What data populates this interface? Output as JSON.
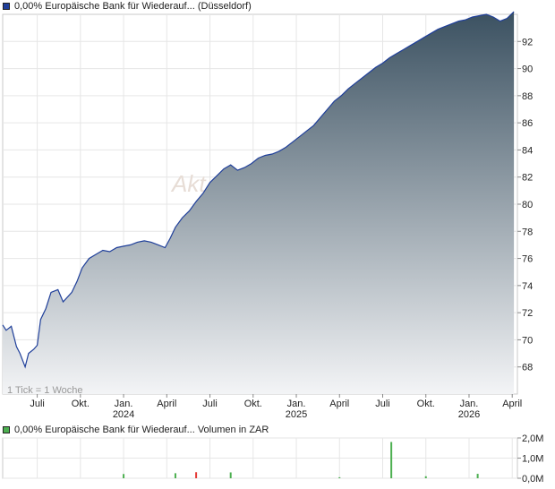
{
  "price_chart": {
    "legend": "0,00% Europäische Bank für Wiederauf... (Düsseldorf)",
    "watermark": "Akt",
    "tick_note": "1 Tick = 1 Woche",
    "color_line": "#1f3f9a",
    "color_fill_top": "#3b5161",
    "color_fill_bottom": "#f3f4f6"
  },
  "volume_chart": {
    "legend": "0,00% Europäische Bank für Wiederauf... Volumen in ZAR"
  },
  "chart_data": [
    {
      "type": "area",
      "title": "0,00% Europäische Bank für Wiederauf... (Düsseldorf)",
      "x_tick_labels": [
        {
          "month": "Juli",
          "year": ""
        },
        {
          "month": "Okt.",
          "year": ""
        },
        {
          "month": "Jan.",
          "year": "2024"
        },
        {
          "month": "April",
          "year": ""
        },
        {
          "month": "Juli",
          "year": ""
        },
        {
          "month": "Okt.",
          "year": ""
        },
        {
          "month": "Jan.",
          "year": "2025"
        },
        {
          "month": "April",
          "year": ""
        },
        {
          "month": "Juli",
          "year": ""
        },
        {
          "month": "Okt.",
          "year": ""
        },
        {
          "month": "Jan.",
          "year": "2026"
        },
        {
          "month": "April",
          "year": ""
        }
      ],
      "x_tick_months": [
        2023.5,
        2023.75,
        2024.0,
        2024.25,
        2024.5,
        2024.75,
        2025.0,
        2025.25,
        2025.5,
        2025.75,
        2026.0,
        2026.25
      ],
      "y_ticks": [
        68,
        70,
        72,
        74,
        76,
        78,
        80,
        82,
        84,
        86,
        88,
        90,
        92
      ],
      "y_tick_labels": [
        "68",
        "70",
        "72",
        "74",
        "76",
        "78",
        "80",
        "82",
        "84",
        "86",
        "88",
        "90",
        "92"
      ],
      "xlim": [
        2023.3,
        2026.28
      ],
      "ylim": [
        66.0,
        94.0
      ],
      "grid": true,
      "series": [
        {
          "x": [
            2023.3,
            2023.32,
            2023.35,
            2023.38,
            2023.4,
            2023.43,
            2023.45,
            2023.48,
            2023.5,
            2023.52,
            2023.55,
            2023.58,
            2023.62,
            2023.65,
            2023.7,
            2023.73,
            2023.76,
            2023.8,
            2023.84,
            2023.88,
            2023.92,
            2023.96,
            2024.0,
            2024.04,
            2024.08,
            2024.12,
            2024.16,
            2024.2,
            2024.24,
            2024.27,
            2024.3,
            2024.34,
            2024.38,
            2024.42,
            2024.46,
            2024.5,
            2024.54,
            2024.58,
            2024.62,
            2024.66,
            2024.7,
            2024.74,
            2024.78,
            2024.82,
            2024.86,
            2024.9,
            2024.94,
            2024.98,
            2025.02,
            2025.06,
            2025.1,
            2025.14,
            2025.18,
            2025.22,
            2025.26,
            2025.3,
            2025.34,
            2025.38,
            2025.42,
            2025.46,
            2025.5,
            2025.54,
            2025.58,
            2025.62,
            2025.66,
            2025.7,
            2025.74,
            2025.78,
            2025.82,
            2025.86,
            2025.9,
            2025.94,
            2025.98,
            2026.02,
            2026.06,
            2026.1,
            2026.14,
            2026.18,
            2026.22,
            2026.26
          ],
          "values": [
            71.1,
            70.7,
            71.0,
            69.5,
            69.0,
            68.0,
            69.0,
            69.3,
            69.6,
            71.5,
            72.3,
            73.5,
            73.7,
            72.8,
            73.5,
            74.3,
            75.3,
            76.0,
            76.3,
            76.6,
            76.5,
            76.8,
            76.9,
            77.0,
            77.2,
            77.3,
            77.2,
            77.0,
            76.8,
            77.5,
            78.3,
            79.0,
            79.5,
            80.2,
            80.8,
            81.6,
            82.1,
            82.6,
            82.9,
            82.5,
            82.7,
            83.0,
            83.4,
            83.6,
            83.7,
            83.9,
            84.2,
            84.6,
            85.0,
            85.4,
            85.8,
            86.4,
            87.0,
            87.6,
            88.0,
            88.5,
            88.9,
            89.3,
            89.7,
            90.1,
            90.4,
            90.8,
            91.1,
            91.4,
            91.7,
            92.0,
            92.3,
            92.6,
            92.9,
            93.1,
            93.3,
            93.5,
            93.6,
            93.8,
            93.9,
            94.0,
            93.8,
            93.5,
            93.7,
            94.2
          ]
        }
      ]
    },
    {
      "type": "bar",
      "title": "0,00% Europäische Bank für Wiederauf... Volumen in ZAR",
      "y_ticks": [
        0,
        1000000,
        2000000
      ],
      "y_tick_labels": [
        "0,0M",
        "1,0M",
        "2,0M"
      ],
      "ylim": [
        0,
        2000000
      ],
      "xlim": [
        2023.3,
        2026.28
      ],
      "grid": true,
      "series": [
        {
          "x": [
            2024.0,
            2024.3,
            2024.42,
            2024.62,
            2025.25,
            2025.55,
            2025.75,
            2026.05
          ],
          "values": [
            210000,
            250000,
            300000,
            290000,
            50000,
            1800000,
            100000,
            220000
          ],
          "colors": [
            "#4caf50",
            "#4caf50",
            "#e53935",
            "#4caf50",
            "#4caf50",
            "#4caf50",
            "#4caf50",
            "#4caf50"
          ]
        }
      ]
    }
  ]
}
